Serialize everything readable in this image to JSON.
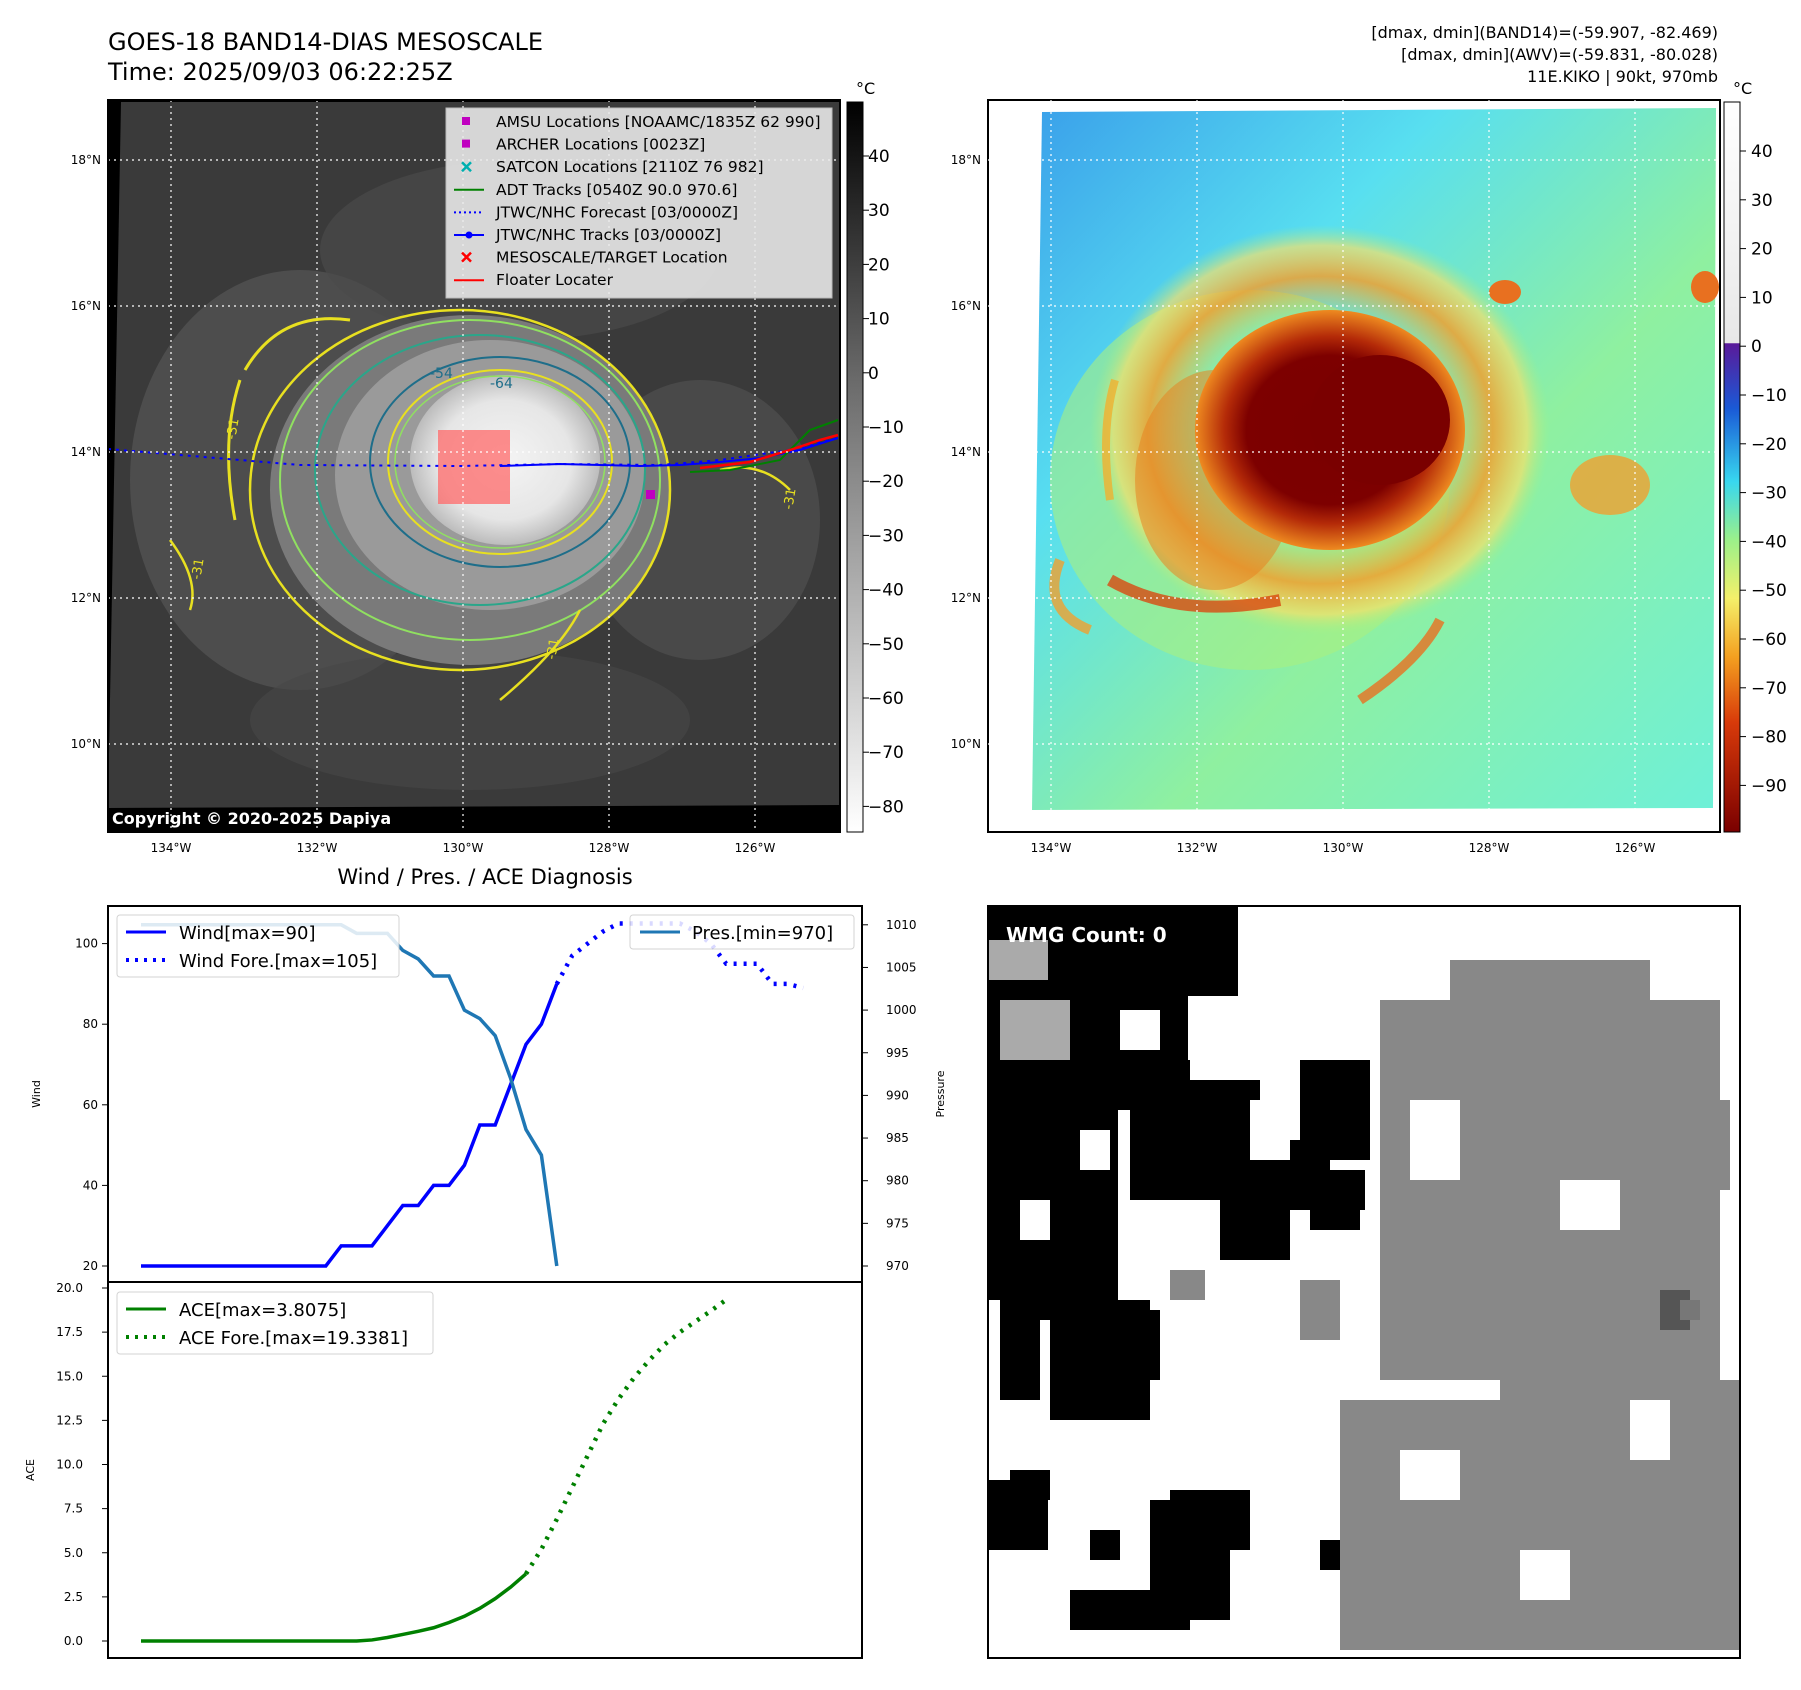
{
  "header": {
    "title": "GOES-18 BAND14-DIAS MESOSCALE",
    "time": "Time: 2025/09/03 06:22:25Z",
    "dmax_band14": "[dmax, dmin](BAND14)=(-59.907, -82.469)",
    "dmax_awv": "[dmax, dmin](AWV)=(-59.831, -80.028)",
    "storm": "11E.KIKO | 90kt, 970mb"
  },
  "map": {
    "lat_labels": [
      "18°N",
      "16°N",
      "14°N",
      "12°N",
      "10°N"
    ],
    "lon_labels": [
      "134°W",
      "132°W",
      "130°W",
      "128°W",
      "126°W"
    ],
    "copyright": "Copyright © 2020-2025 Dapiya",
    "contour_labels": [
      "-54",
      "-64",
      "-31",
      "-31",
      "-31",
      "-31"
    ],
    "legend": [
      {
        "label": "AMSU Locations [NOAAMC/1835Z 62 990]",
        "color": "#c000c0",
        "marker": "square"
      },
      {
        "label": "ARCHER Locations [0023Z]",
        "color": "#c000c0",
        "marker": "square"
      },
      {
        "label": "SATCON Locations [2110Z 76 982]",
        "color": "#00b0b0",
        "marker": "x"
      },
      {
        "label": "ADT Tracks [0540Z 90.0 970.6]",
        "color": "#008000",
        "marker": "line"
      },
      {
        "label": "JTWC/NHC Forecast [03/0000Z]",
        "color": "#0000ff",
        "marker": "dotted"
      },
      {
        "label": "JTWC/NHC Tracks [03/0000Z]",
        "color": "#0000ff",
        "marker": "line-dot"
      },
      {
        "label": "MESOSCALE/TARGET Location",
        "color": "#ff0000",
        "marker": "x"
      },
      {
        "label": "Floater Locater",
        "color": "#ff0000",
        "marker": "line"
      }
    ]
  },
  "colorbars": {
    "unit": "°C",
    "left_ticks": [
      "40",
      "30",
      "20",
      "10",
      "0",
      "−10",
      "−20",
      "−30",
      "−40",
      "−50",
      "−60",
      "−70",
      "−80"
    ],
    "right_ticks": [
      "40",
      "30",
      "20",
      "10",
      "0",
      "−10",
      "−20",
      "−30",
      "−40",
      "−50",
      "−60",
      "−70",
      "−80",
      "−90"
    ]
  },
  "wmg": {
    "label": "WMG Count: 0"
  },
  "chart_data": [
    {
      "type": "line",
      "title": "Wind / Pres. / ACE Diagnosis",
      "ylabel": "Wind",
      "ylabel_right": "Pressure",
      "ylim": [
        20,
        105
      ],
      "ylim_right": [
        970,
        1010
      ],
      "yticks": [
        "20",
        "40",
        "60",
        "80",
        "100"
      ],
      "yticks_right": [
        "970",
        "975",
        "980",
        "985",
        "990",
        "995",
        "1000",
        "1005",
        "1010"
      ],
      "x_index": [
        0,
        1,
        2,
        3,
        4,
        5,
        6,
        7,
        8,
        9,
        10,
        11,
        12,
        13,
        14,
        15,
        16,
        17,
        18,
        19,
        20,
        21,
        22,
        23,
        24,
        25,
        26,
        27,
        28,
        29,
        30,
        31,
        32,
        33,
        34,
        35,
        36,
        37,
        38,
        39,
        40,
        41,
        42,
        43
      ],
      "series": [
        {
          "name": "Wind[max=90]",
          "color": "#0000ff",
          "style": "solid",
          "values": [
            20,
            20,
            20,
            20,
            20,
            20,
            20,
            20,
            20,
            20,
            20,
            20,
            20,
            25,
            25,
            25,
            30,
            35,
            35,
            40,
            40,
            45,
            55,
            55,
            65,
            75,
            80,
            90
          ]
        },
        {
          "name": "Wind Fore.[max=105]",
          "color": "#0000ff",
          "style": "dotted",
          "x_start": 27,
          "values": [
            90,
            97,
            100,
            103,
            105,
            105,
            105,
            105,
            105,
            103,
            100,
            95,
            95,
            95,
            90,
            90,
            89
          ]
        },
        {
          "name": "Pres.[min=970]",
          "color": "#1f77b4",
          "style": "solid",
          "values": [
            1010,
            1010,
            1010,
            1010,
            1010,
            1010,
            1010,
            1010,
            1010,
            1010,
            1010,
            1010,
            1010,
            1010,
            1009,
            1009,
            1009,
            1007,
            1006,
            1004,
            1004,
            1000,
            999,
            997,
            992,
            986,
            983,
            970
          ]
        }
      ]
    },
    {
      "type": "line",
      "ylabel": "ACE",
      "ylim": [
        0,
        20
      ],
      "yticks": [
        "0.0",
        "2.5",
        "5.0",
        "7.5",
        "10.0",
        "12.5",
        "15.0",
        "17.5",
        "20.0"
      ],
      "series": [
        {
          "name": "ACE[max=3.8075]",
          "color": "#008000",
          "style": "solid",
          "values": [
            0,
            0,
            0,
            0,
            0,
            0,
            0,
            0,
            0,
            0,
            0,
            0,
            0,
            0,
            0,
            0.06,
            0.2,
            0.37,
            0.55,
            0.75,
            1.05,
            1.4,
            1.85,
            2.4,
            3.05,
            3.8075
          ]
        },
        {
          "name": "ACE Fore.[max=19.3381]",
          "color": "#008000",
          "style": "dotted",
          "x_start": 25,
          "values": [
            3.8075,
            5.2,
            6.9,
            8.7,
            10.5,
            12.3,
            13.7,
            14.9,
            15.9,
            16.8,
            17.5,
            18.1,
            18.7,
            19.3381
          ]
        }
      ]
    }
  ]
}
